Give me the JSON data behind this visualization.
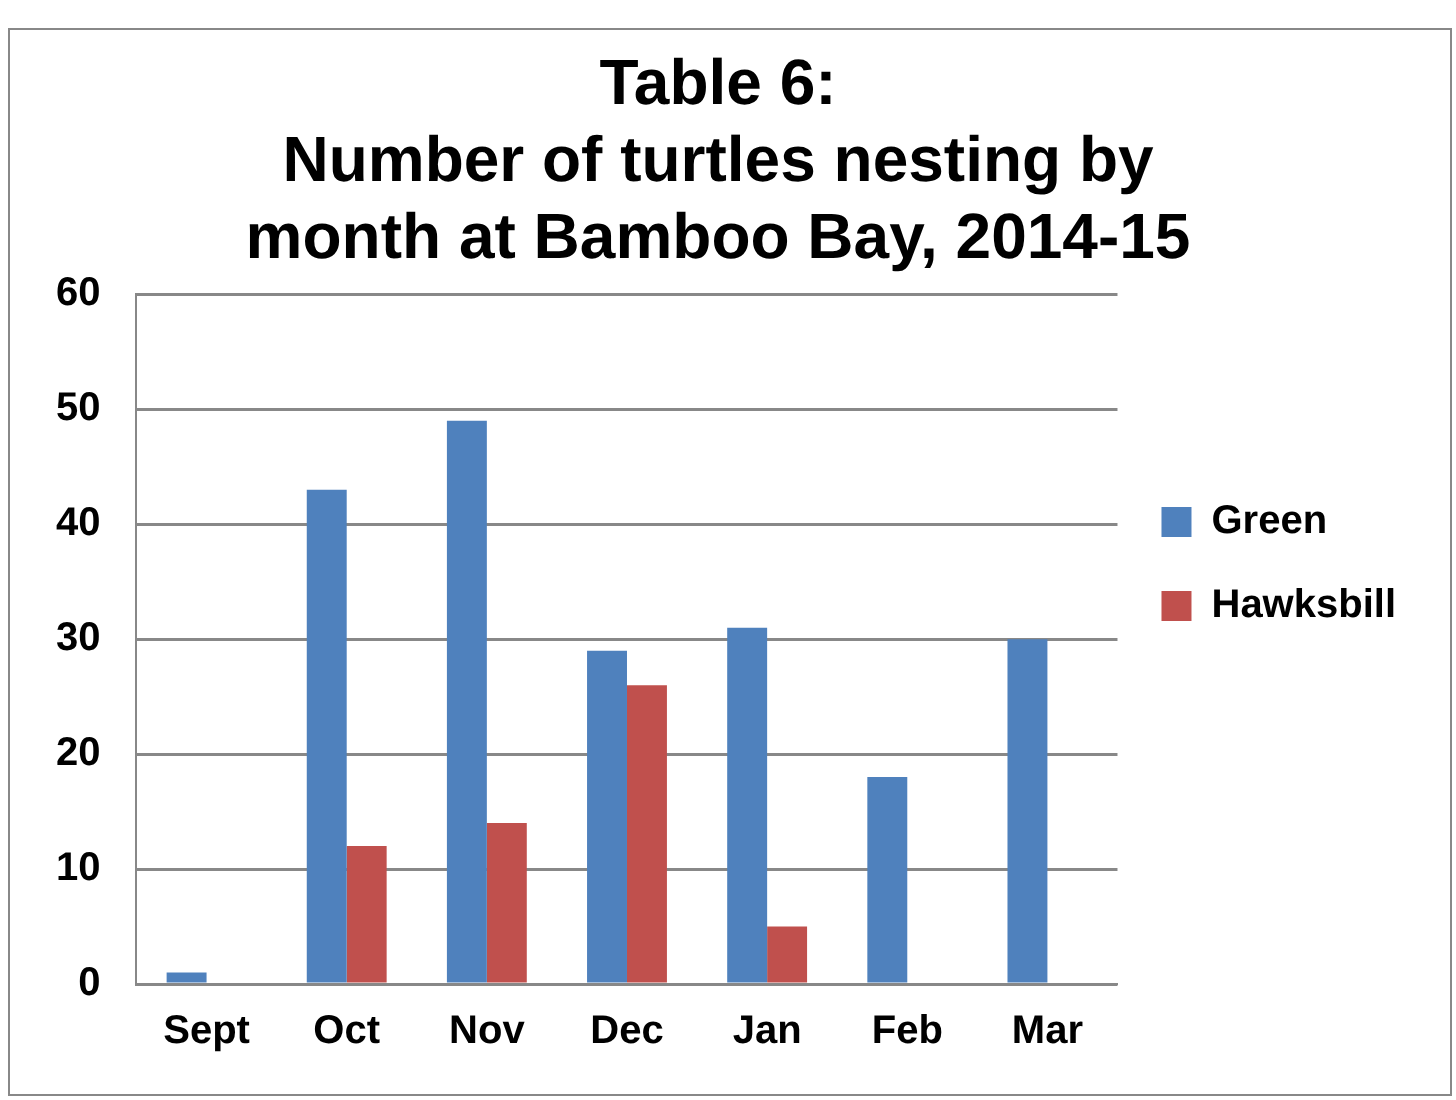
{
  "chart_data": {
    "type": "bar",
    "title": "Table 6:\nNumber of turtles nesting by\nmonth at Bamboo Bay, 2014-15",
    "categories": [
      "Sept",
      "Oct",
      "Nov",
      "Dec",
      "Jan",
      "Feb",
      "Mar"
    ],
    "series": [
      {
        "name": "Green",
        "color": "#4f81bd",
        "values": [
          1,
          43,
          49,
          29,
          31,
          18,
          30
        ]
      },
      {
        "name": "Hawksbill",
        "color": "#c0504d",
        "values": [
          0,
          12,
          14,
          26,
          5,
          0,
          0
        ]
      }
    ],
    "ylim": [
      0,
      60
    ],
    "yticks": [
      0,
      10,
      20,
      30,
      40,
      50,
      60
    ],
    "grid": "y",
    "legend": "right"
  }
}
